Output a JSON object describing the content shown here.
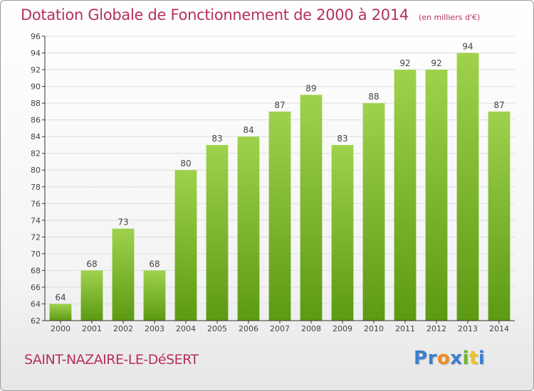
{
  "header": {
    "title": "Dotation Globale de Fonctionnement de 2000 à 2014",
    "subtitle": "(en milliers d'€)"
  },
  "footer": {
    "commune": "SAINT-NAZAIRE-LE-DéSERT",
    "logo": {
      "letters": [
        "P",
        "r",
        "o",
        "x",
        "i",
        "t",
        "i"
      ],
      "colors": [
        "#3a7fd0",
        "#3a7fd0",
        "#f28c1e",
        "#3a7fd0",
        "#6fb52c",
        "#f0c419",
        "#3a7fd0"
      ]
    }
  },
  "chart_data": {
    "type": "bar",
    "categories": [
      "2000",
      "2001",
      "2002",
      "2003",
      "2004",
      "2005",
      "2006",
      "2007",
      "2008",
      "2009",
      "2010",
      "2011",
      "2012",
      "2013",
      "2014"
    ],
    "values": [
      64,
      68,
      73,
      68,
      80,
      83,
      84,
      87,
      89,
      83,
      88,
      92,
      92,
      94,
      87
    ],
    "title": "Dotation Globale de Fonctionnement de 2000 à 2014",
    "subtitle": "(en milliers d'€)",
    "ylim": [
      62,
      96
    ],
    "yticks": [
      62,
      64,
      66,
      68,
      70,
      72,
      74,
      76,
      78,
      80,
      82,
      84,
      86,
      88,
      90,
      92,
      94,
      96
    ],
    "grid": true,
    "legend": "none",
    "bar_color_light": "#9fd24c",
    "bar_color_dark": "#5c9a12",
    "grid_color": "#dddddd",
    "axis_color": "#333333",
    "label_color": "#444444"
  }
}
